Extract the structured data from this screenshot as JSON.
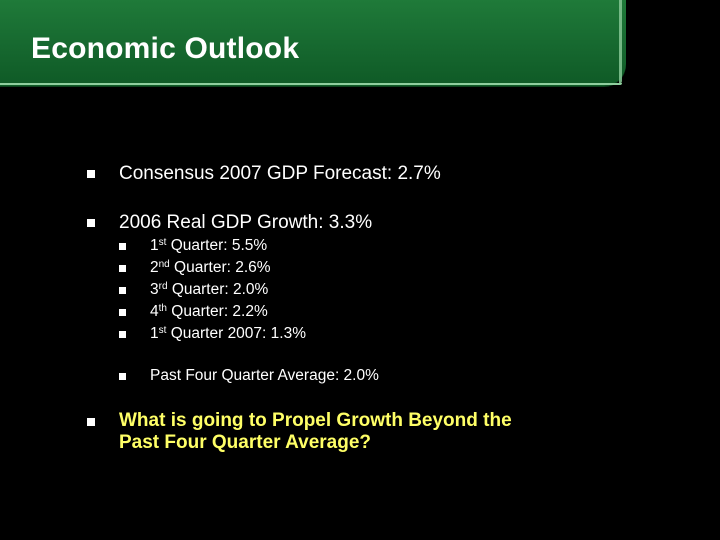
{
  "title": "Economic Outlook",
  "colors": {
    "title_bar": "#1f7a39",
    "background": "#000000",
    "text": "#ffffff",
    "highlight": "#ffff66"
  },
  "icons": {
    "bullet": "square-bullet-icon"
  },
  "bullets": {
    "consensus": "Consensus 2007 GDP Forecast: 2.7%",
    "growth_2006": "2006 Real GDP Growth: 3.3%",
    "quarters": [
      {
        "ord": "1",
        "sup": "st",
        "rest": " Quarter: 5.5%"
      },
      {
        "ord": "2",
        "sup": "nd",
        "rest": " Quarter: 2.6%"
      },
      {
        "ord": "3",
        "sup": "rd",
        "rest": " Quarter: 2.0%"
      },
      {
        "ord": "4",
        "sup": "th",
        "rest": " Quarter: 2.2%"
      },
      {
        "ord": "1",
        "sup": "st",
        "rest": " Quarter 2007: 1.3%"
      }
    ],
    "average": "Past Four Quarter Average: 2.0%",
    "question_line1": "What is going to Propel Growth Beyond the",
    "question_line2": "Past Four Quarter Average?"
  }
}
